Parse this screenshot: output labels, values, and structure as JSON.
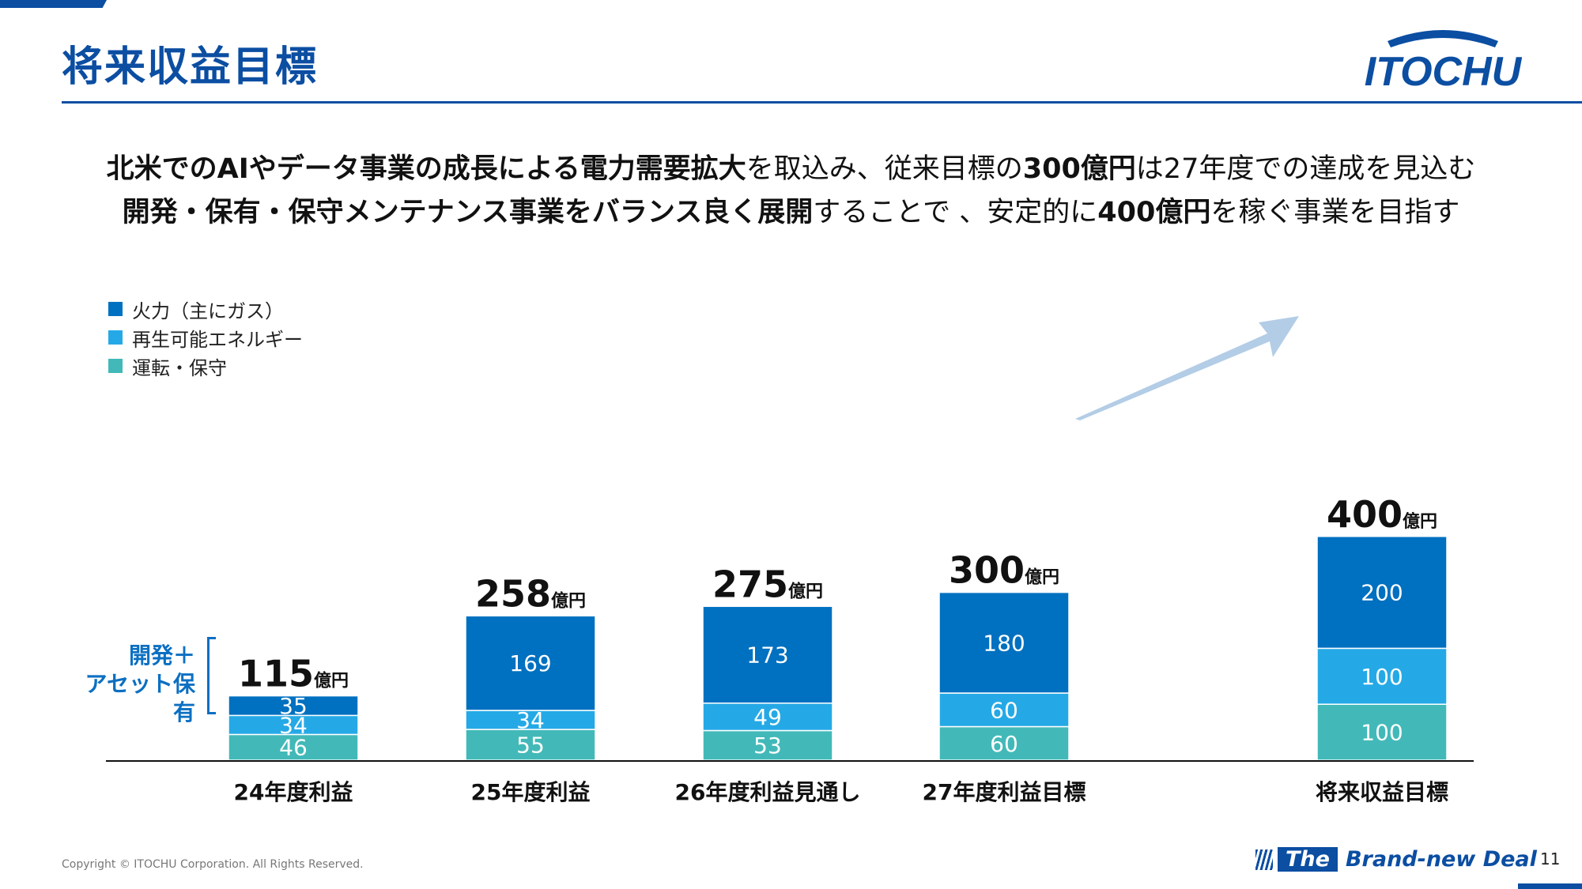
{
  "header": {
    "title": "将来収益目標",
    "logo_text": "ITOCHU"
  },
  "subtitle": {
    "line1": [
      {
        "text": "北米でのAIやデータ事業の成長による電力需要拡大",
        "bold": true
      },
      {
        "text": "を取込み、従来目標の",
        "bold": false
      },
      {
        "text": "300億円",
        "bold": true
      },
      {
        "text": "は27年度での達成を見込む",
        "bold": false
      }
    ],
    "line2": [
      {
        "text": "開発・保有・保守メンテナンス事業をバランス良く展開",
        "bold": true
      },
      {
        "text": "することで 、安定的に",
        "bold": false
      },
      {
        "text": "400億円",
        "bold": true
      },
      {
        "text": "を稼ぐ事業を目指す",
        "bold": false
      }
    ]
  },
  "bracket_label": "開発＋\nアセット保有",
  "colors": {
    "brand": "#0b4ea2",
    "thermal": "#0070c0",
    "renewable": "#25a9e6",
    "operation": "#42b9b8",
    "arrow": "#b3cde6"
  },
  "chart_data": {
    "type": "bar",
    "stacked": true,
    "categories": [
      "24年度利益",
      "25年度利益",
      "26年度利益見通し",
      "27年度利益目標",
      "将来収益目標"
    ],
    "series": [
      {
        "name": "運転・保守",
        "values": [
          46,
          55,
          53,
          60,
          100
        ],
        "color": "#42b9b8"
      },
      {
        "name": "再生可能エネルギー",
        "values": [
          34,
          34,
          49,
          60,
          100
        ],
        "color": "#25a9e6"
      },
      {
        "name": "火力（主にガス）",
        "values": [
          35,
          169,
          173,
          180,
          200
        ],
        "color": "#0070c0"
      }
    ],
    "totals": [
      115,
      258,
      275,
      300,
      400
    ],
    "total_unit": "億円",
    "legend_order": [
      "火力（主にガス）",
      "再生可能エネルギー",
      "運転・保守"
    ],
    "legend_position": "top-left",
    "ylim": [
      0,
      400
    ],
    "grid": false
  },
  "footer": {
    "copyright": "Copyright © ITOCHU Corporation. All Rights Reserved.",
    "tagline_the": "The",
    "tagline_rest": "Brand-new Deal",
    "page_number": "11"
  }
}
